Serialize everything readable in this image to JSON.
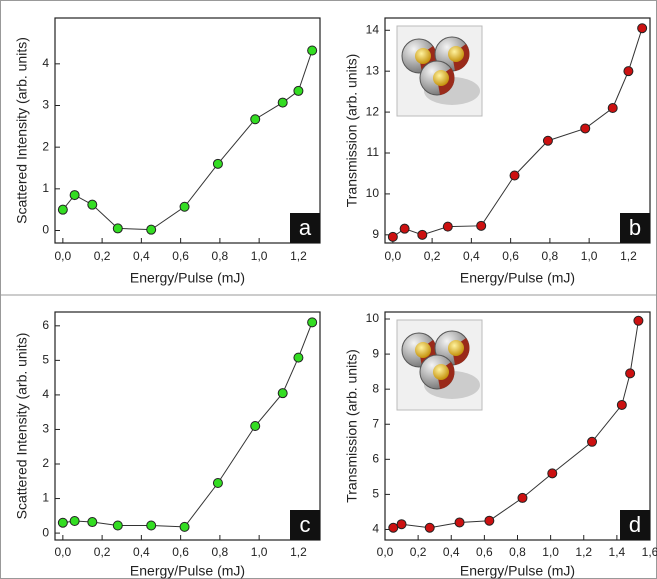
{
  "chart_data": [
    {
      "type": "line",
      "label": "a",
      "xlabel": "Energy/Pulse (mJ)",
      "ylabel": "Scattered Intensity (arb. units)",
      "x": [
        0.0,
        0.06,
        0.15,
        0.28,
        0.45,
        0.62,
        0.79,
        0.98,
        1.12,
        1.2,
        1.27
      ],
      "series": [
        {
          "color": "#33dd22",
          "values": [
            0.5,
            0.85,
            0.62,
            0.05,
            0.02,
            0.57,
            1.6,
            2.67,
            3.07,
            3.35,
            4.32
          ]
        }
      ],
      "xlim": [
        -0.04,
        1.31
      ],
      "ylim": [
        -0.3,
        5.1
      ],
      "xticks": [
        {
          "value": 0,
          "label": "0,0"
        },
        {
          "value": 0.2,
          "label": "0,2"
        },
        {
          "value": 0.4,
          "label": "0,4"
        },
        {
          "value": 0.6,
          "label": "0,6"
        },
        {
          "value": 0.8,
          "label": "0,8"
        },
        {
          "value": 1.0,
          "label": "1,0"
        },
        {
          "value": 1.2,
          "label": "1,2"
        }
      ],
      "yticks": [
        0,
        1,
        2,
        3,
        4
      ]
    },
    {
      "type": "line",
      "label": "b",
      "xlabel": "Energy/Pulse (mJ)",
      "ylabel": "Transmission (arb. units)",
      "x": [
        0.0,
        0.06,
        0.15,
        0.28,
        0.45,
        0.62,
        0.79,
        0.98,
        1.12,
        1.2,
        1.27
      ],
      "series": [
        {
          "color": "#cc1111",
          "values": [
            8.95,
            9.15,
            9.0,
            9.2,
            9.22,
            10.45,
            11.3,
            11.6,
            12.1,
            13.0,
            14.05
          ]
        }
      ],
      "xlim": [
        -0.04,
        1.31
      ],
      "ylim": [
        8.8,
        14.3
      ],
      "xticks": [
        {
          "value": 0,
          "label": "0,0"
        },
        {
          "value": 0.2,
          "label": "0,2"
        },
        {
          "value": 0.4,
          "label": "0,4"
        },
        {
          "value": 0.6,
          "label": "0,6"
        },
        {
          "value": 0.8,
          "label": "0,8"
        },
        {
          "value": 1.0,
          "label": "1,0"
        },
        {
          "value": 1.2,
          "label": "1,2"
        }
      ],
      "yticks": [
        9,
        10,
        11,
        12,
        13,
        14
      ]
    },
    {
      "type": "line",
      "label": "c",
      "xlabel": "Energy/Pulse (mJ)",
      "ylabel": "Scattered Intensity (arb. units)",
      "x": [
        0.0,
        0.06,
        0.15,
        0.28,
        0.45,
        0.62,
        0.79,
        0.98,
        1.12,
        1.2,
        1.27
      ],
      "series": [
        {
          "color": "#33dd22",
          "values": [
            0.3,
            0.35,
            0.32,
            0.22,
            0.22,
            0.18,
            1.45,
            3.1,
            4.05,
            5.08,
            6.1
          ]
        }
      ],
      "xlim": [
        -0.04,
        1.31
      ],
      "ylim": [
        -0.2,
        6.4
      ],
      "xticks": [
        {
          "value": 0,
          "label": "0,0"
        },
        {
          "value": 0.2,
          "label": "0,2"
        },
        {
          "value": 0.4,
          "label": "0,4"
        },
        {
          "value": 0.6,
          "label": "0,6"
        },
        {
          "value": 0.8,
          "label": "0,8"
        },
        {
          "value": 1.0,
          "label": "1,0"
        },
        {
          "value": 1.2,
          "label": "1,2"
        }
      ],
      "yticks": [
        0,
        1,
        2,
        3,
        4,
        5,
        6
      ]
    },
    {
      "type": "line",
      "label": "d",
      "xlabel": "Energy/Pulse (mJ)",
      "ylabel": "Transmission (arb. units)",
      "x": [
        0.05,
        0.1,
        0.27,
        0.45,
        0.63,
        0.83,
        1.01,
        1.25,
        1.43,
        1.48,
        1.53
      ],
      "series": [
        {
          "color": "#cc1111",
          "values": [
            4.05,
            4.15,
            4.05,
            4.2,
            4.25,
            4.9,
            5.6,
            6.5,
            7.55,
            8.45,
            9.95
          ]
        }
      ],
      "xlim": [
        0.0,
        1.6
      ],
      "ylim": [
        3.7,
        10.2
      ],
      "xticks": [
        {
          "value": 0,
          "label": "0,0"
        },
        {
          "value": 0.2,
          "label": "0,2"
        },
        {
          "value": 0.4,
          "label": "0,4"
        },
        {
          "value": 0.6,
          "label": "0,6"
        },
        {
          "value": 0.8,
          "label": "0,8"
        },
        {
          "value": 1.0,
          "label": "1,0"
        },
        {
          "value": 1.2,
          "label": "1,2"
        },
        {
          "value": 1.4,
          "label": "1,4"
        },
        {
          "value": 1.6,
          "label": "1,6"
        }
      ],
      "yticks": [
        4,
        5,
        6,
        7,
        8,
        9,
        10
      ]
    }
  ]
}
